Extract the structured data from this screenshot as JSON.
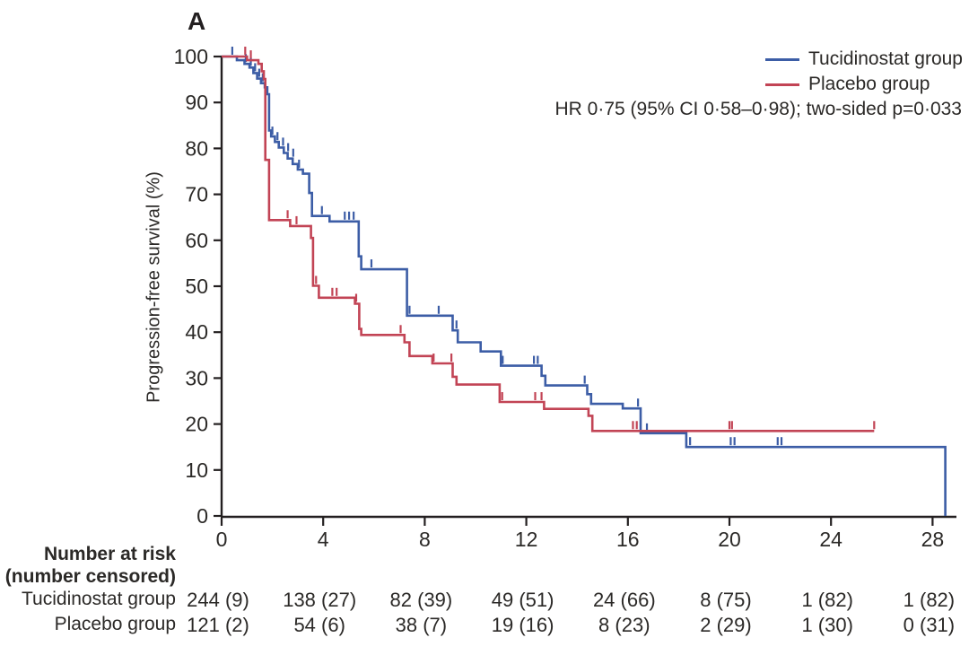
{
  "panel_label": "A",
  "ylabel": "Progression-free survival (%)",
  "annotation": "HR 0·75 (95% CI 0·58–0·98); two-sided p=0·033",
  "legend": {
    "items": [
      {
        "label": "Tucidinostat group",
        "color": "#3C5DA6"
      },
      {
        "label": "Placebo group",
        "color": "#C24455"
      }
    ]
  },
  "chart_data": {
    "type": "line",
    "subtype": "kaplan_meier_step",
    "title": "",
    "xlabel": "",
    "ylabel": "Progression-free survival (%)",
    "xlim": [
      0,
      29
    ],
    "ylim": [
      0,
      100
    ],
    "x_ticks": [
      0,
      4,
      8,
      12,
      16,
      20,
      24,
      28
    ],
    "y_ticks": [
      0,
      10,
      20,
      30,
      40,
      50,
      60,
      70,
      80,
      90,
      100
    ],
    "grid": false,
    "legend_position": "top-right",
    "series": [
      {
        "name": "Tucidinostat group",
        "color": "#3C5DA6",
        "steps": [
          [
            0,
            100
          ],
          [
            0.6,
            99.2
          ],
          [
            0.9,
            98.4
          ],
          [
            1.1,
            97.6
          ],
          [
            1.25,
            96.4
          ],
          [
            1.4,
            95.2
          ],
          [
            1.55,
            94.2
          ],
          [
            1.7,
            93.3
          ],
          [
            1.8,
            91.8
          ],
          [
            1.87,
            83.9
          ],
          [
            1.95,
            82.6
          ],
          [
            2.1,
            81.4
          ],
          [
            2.25,
            80.2
          ],
          [
            2.45,
            79.0
          ],
          [
            2.6,
            77.8
          ],
          [
            2.8,
            76.6
          ],
          [
            3.0,
            75.4
          ],
          [
            3.2,
            74.5
          ],
          [
            3.45,
            70.3
          ],
          [
            3.56,
            65.3
          ],
          [
            4.25,
            64.1
          ],
          [
            5.4,
            56.5
          ],
          [
            5.5,
            53.7
          ],
          [
            7.3,
            43.6
          ],
          [
            9.1,
            40.4
          ],
          [
            9.3,
            37.8
          ],
          [
            10.2,
            35.8
          ],
          [
            11.0,
            32.7
          ],
          [
            12.6,
            30.5
          ],
          [
            12.75,
            28.4
          ],
          [
            14.4,
            26.5
          ],
          [
            14.55,
            24.4
          ],
          [
            15.8,
            23.4
          ],
          [
            16.5,
            18.0
          ],
          [
            18.3,
            15.0
          ],
          [
            28.5,
            0
          ]
        ],
        "censor_marks": [
          [
            0.42,
            100
          ],
          [
            0.95,
            98.4
          ],
          [
            1.15,
            97.6
          ],
          [
            1.32,
            96.4
          ],
          [
            1.48,
            95.2
          ],
          [
            1.62,
            94.2
          ],
          [
            2.0,
            82.6
          ],
          [
            2.2,
            81.4
          ],
          [
            2.42,
            80.2
          ],
          [
            2.62,
            79.0
          ],
          [
            2.82,
            77.8
          ],
          [
            3.05,
            75.4
          ],
          [
            3.95,
            65.3
          ],
          [
            4.85,
            64.1
          ],
          [
            5.02,
            64.1
          ],
          [
            5.2,
            64.1
          ],
          [
            5.9,
            53.7
          ],
          [
            7.4,
            43.6
          ],
          [
            8.55,
            43.6
          ],
          [
            9.25,
            40.4
          ],
          [
            11.07,
            32.7
          ],
          [
            12.3,
            32.7
          ],
          [
            12.45,
            32.7
          ],
          [
            14.3,
            28.4
          ],
          [
            16.4,
            23.4
          ],
          [
            16.75,
            18.0
          ],
          [
            18.45,
            15.0
          ],
          [
            20.05,
            15.0
          ],
          [
            20.2,
            15.0
          ],
          [
            21.9,
            15.0
          ],
          [
            22.05,
            15.0
          ]
        ]
      },
      {
        "name": "Placebo group",
        "color": "#C24455",
        "steps": [
          [
            0,
            100
          ],
          [
            1.0,
            99.2
          ],
          [
            1.45,
            98.4
          ],
          [
            1.58,
            96.8
          ],
          [
            1.66,
            95.1
          ],
          [
            1.72,
            77.5
          ],
          [
            1.87,
            64.4
          ],
          [
            2.7,
            63.1
          ],
          [
            3.52,
            60.5
          ],
          [
            3.6,
            50.1
          ],
          [
            3.83,
            47.5
          ],
          [
            5.25,
            46.2
          ],
          [
            5.42,
            40.7
          ],
          [
            5.5,
            39.4
          ],
          [
            7.2,
            37.8
          ],
          [
            7.4,
            34.8
          ],
          [
            8.3,
            33.2
          ],
          [
            9.1,
            30.3
          ],
          [
            9.25,
            28.6
          ],
          [
            10.95,
            24.8
          ],
          [
            12.7,
            23.3
          ],
          [
            14.45,
            21.8
          ],
          [
            14.6,
            18.5
          ],
          [
            25.7,
            18.5
          ]
        ],
        "censor_marks": [
          [
            0.93,
            100
          ],
          [
            1.15,
            99.2
          ],
          [
            2.6,
            64.4
          ],
          [
            2.95,
            63.1
          ],
          [
            3.72,
            50.1
          ],
          [
            4.36,
            47.5
          ],
          [
            4.53,
            47.5
          ],
          [
            5.3,
            46.2
          ],
          [
            7.05,
            39.4
          ],
          [
            8.35,
            33.2
          ],
          [
            9.05,
            33.2
          ],
          [
            11.05,
            24.8
          ],
          [
            12.35,
            24.8
          ],
          [
            12.6,
            24.8
          ],
          [
            16.2,
            18.5
          ],
          [
            16.35,
            18.5
          ],
          [
            20.0,
            18.5
          ],
          [
            20.1,
            18.5
          ],
          [
            25.7,
            18.5
          ]
        ]
      }
    ],
    "annotations": [
      "HR 0·75 (95% CI 0·58–0·98); two-sided p=0·033"
    ]
  },
  "risk_table": {
    "header_line1": "Number at risk",
    "header_line2": "(number censored)",
    "time_points": [
      0,
      4,
      8,
      12,
      16,
      20,
      24,
      28
    ],
    "rows": [
      {
        "label": "Tucidinostat group",
        "values": [
          "244 (9)",
          "138 (27)",
          "82 (39)",
          "49 (51)",
          "24 (66)",
          "8 (75)",
          "1 (82)",
          "1 (82)"
        ]
      },
      {
        "label": "Placebo group",
        "values": [
          "121 (2)",
          "54 (6)",
          "38 (7)",
          "19 (16)",
          "8 (23)",
          "2 (29)",
          "1 (30)",
          "0 (31)"
        ]
      }
    ]
  }
}
